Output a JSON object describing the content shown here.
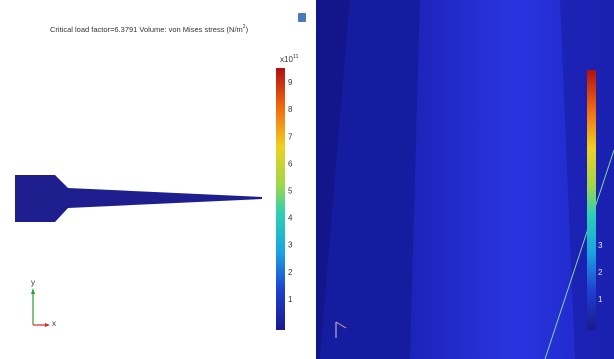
{
  "left_panel": {
    "title": {
      "text": "Critical load factor=6.3791  Volume: von Mises stress (N/m",
      "superscript": "2",
      "closing": ")"
    },
    "colorbar": {
      "exponent": {
        "base": "x10",
        "superscript": "11"
      },
      "ticks": [
        "9",
        "8",
        "7",
        "6",
        "5",
        "4",
        "3",
        "2",
        "1"
      ]
    },
    "axes": {
      "y": "y",
      "x": "x"
    }
  },
  "right_panel": {
    "colorbar": {
      "ticks": [
        "3",
        "2",
        "1"
      ]
    }
  }
}
